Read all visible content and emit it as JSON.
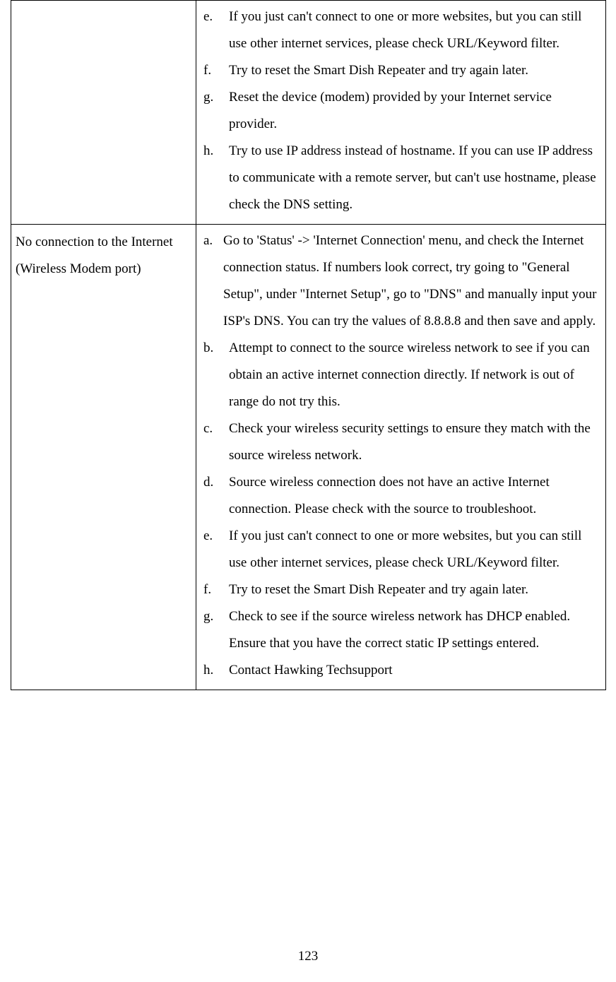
{
  "page_number": "123",
  "table": {
    "rows": [
      {
        "label": "",
        "items": [
          {
            "marker": "e.",
            "text": "If you just can't connect to one or more websites, but you can still use other internet services, please check URL/Keyword filter."
          },
          {
            "marker": "f.",
            "text": "Try to reset the Smart Dish Repeater and try again later."
          },
          {
            "marker": "g.",
            "text": "Reset the device (modem) provided by your Internet service provider."
          },
          {
            "marker": "h.",
            "text": "Try to use IP address instead of hostname. If you can use IP address to communicate with a remote server, but can't use hostname, please check the DNS setting."
          }
        ]
      },
      {
        "label": "No connection to the Internet (Wireless Modem port)",
        "items": [
          {
            "marker": "a.",
            "text": "Go to 'Status' -> 'Internet Connection' menu, and check the Internet connection status.   If numbers look correct, try going to \"General Setup\", under \"Internet Setup\", go to \"DNS\" and manually input your ISP's DNS.   You can try the values of 8.8.8.8 and then save and apply.",
            "cls": "a"
          },
          {
            "marker": "b.",
            "text": "Attempt to connect to the source wireless network to see if you can obtain an active internet connection directly.   If network is out of range do not try this."
          },
          {
            "marker": "c.",
            "text": "Check your wireless security settings to ensure they match with the source wireless network."
          },
          {
            "marker": "d.",
            "text": "Source wireless connection does not have an active Internet connection.   Please check with the source to troubleshoot."
          },
          {
            "marker": "e.",
            "text": "If you just can't connect to one or more websites, but you can still use other internet services, please check URL/Keyword filter."
          },
          {
            "marker": "f.",
            "text": "Try to reset the Smart Dish Repeater and try again later."
          },
          {
            "marker": "g.",
            "text": "Check to see if the source wireless network has DHCP enabled.   Ensure that you have the correct static IP settings entered."
          },
          {
            "marker": "h.",
            "text": "Contact Hawking Techsupport"
          }
        ]
      }
    ]
  }
}
